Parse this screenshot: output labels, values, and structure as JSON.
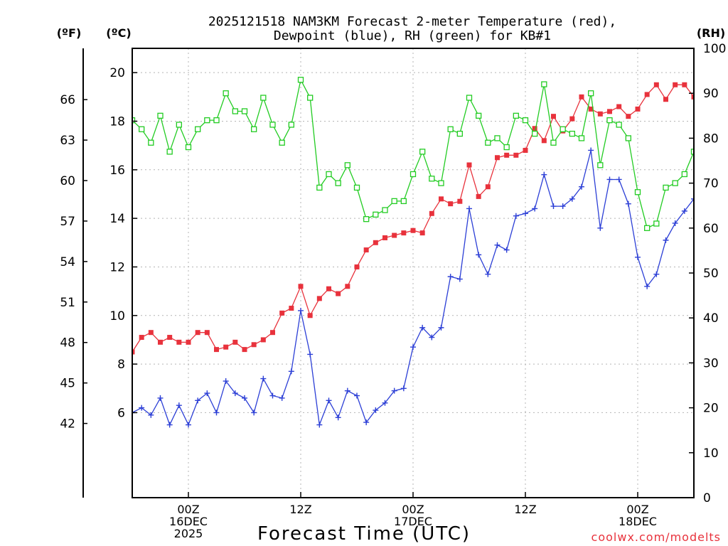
{
  "chart_data": {
    "type": "line",
    "title_line1": "2025121518 NAM3KM Forecast 2-meter Temperature (red),",
    "title_line2": "Dewpoint (blue), RH (green) for KB#1",
    "unit_f": "(ºF)",
    "unit_c": "(ºC)",
    "unit_rh": "(RH)",
    "xlabel": "Forecast Time (UTC)",
    "watermark": "coolwx.com/modelts",
    "x_hours": [
      0,
      1,
      2,
      3,
      4,
      5,
      6,
      7,
      8,
      9,
      10,
      11,
      12,
      13,
      14,
      15,
      16,
      17,
      18,
      19,
      20,
      21,
      22,
      23,
      24,
      25,
      26,
      27,
      28,
      29,
      30,
      31,
      32,
      33,
      34,
      35,
      36,
      37,
      38,
      39,
      40,
      41,
      42,
      43,
      44,
      45,
      46,
      47,
      48,
      49,
      50,
      51,
      52,
      53,
      54,
      55,
      56,
      57,
      58,
      59,
      60
    ],
    "xlim": [
      0,
      60
    ],
    "x_ticks": [
      {
        "h": 6,
        "lines": [
          "00Z",
          "16DEC",
          "2025"
        ]
      },
      {
        "h": 18,
        "lines": [
          "12Z"
        ]
      },
      {
        "h": 30,
        "lines": [
          "00Z",
          "17DEC"
        ]
      },
      {
        "h": 42,
        "lines": [
          "12Z"
        ]
      },
      {
        "h": 54,
        "lines": [
          "00Z",
          "18DEC"
        ]
      }
    ],
    "ylim_c": [
      2.5,
      21
    ],
    "y_ticks_c": [
      6,
      8,
      10,
      12,
      14,
      16,
      18,
      20
    ],
    "y_ticks_f": [
      42,
      45,
      48,
      51,
      54,
      57,
      60,
      63,
      66
    ],
    "ylim_rh": [
      0,
      100
    ],
    "y_ticks_rh": [
      0,
      10,
      20,
      30,
      40,
      50,
      60,
      70,
      80,
      90,
      100
    ],
    "grid": true,
    "series": [
      {
        "name": "Temperature",
        "axis": "c",
        "color": "#e8323c",
        "marker": "filled-square",
        "values": [
          8.5,
          9.1,
          9.3,
          8.9,
          9.1,
          8.9,
          8.9,
          9.3,
          9.3,
          8.6,
          8.7,
          8.9,
          8.6,
          8.8,
          9.0,
          9.3,
          10.1,
          10.3,
          11.2,
          10.0,
          10.7,
          11.1,
          10.9,
          11.2,
          12.0,
          12.7,
          13.0,
          13.2,
          13.3,
          13.4,
          13.5,
          13.4,
          14.2,
          14.8,
          14.6,
          14.7,
          16.2,
          14.9,
          15.3,
          16.5,
          16.6,
          16.6,
          16.8,
          17.7,
          17.2,
          18.2,
          17.6,
          18.1,
          19.0,
          18.5,
          18.3,
          18.4,
          18.6,
          18.2,
          18.5,
          19.1,
          19.5,
          18.9,
          19.5,
          19.5,
          19.0
        ]
      },
      {
        "name": "Dewpoint",
        "axis": "c",
        "color": "#2c3fd6",
        "marker": "plus",
        "values": [
          6.0,
          6.2,
          5.9,
          6.6,
          5.5,
          6.3,
          5.5,
          6.5,
          6.8,
          6.0,
          7.3,
          6.8,
          6.6,
          6.0,
          7.4,
          6.7,
          6.6,
          7.7,
          10.2,
          8.4,
          5.5,
          6.5,
          5.8,
          6.9,
          6.7,
          5.6,
          6.1,
          6.4,
          6.9,
          7.0,
          8.7,
          9.5,
          9.1,
          9.5,
          11.6,
          11.5,
          14.4,
          12.5,
          11.7,
          12.9,
          12.7,
          14.1,
          14.2,
          14.4,
          15.8,
          14.5,
          14.5,
          14.8,
          15.3,
          16.8,
          13.6,
          15.6,
          15.6,
          14.6,
          12.4,
          11.2,
          11.7,
          13.1,
          13.8,
          14.3,
          14.8
        ]
      },
      {
        "name": "RH",
        "axis": "rh",
        "color": "#22cc22",
        "marker": "open-square",
        "values": [
          84,
          82,
          79,
          85,
          77,
          83,
          78,
          82,
          84,
          84,
          90,
          86,
          86,
          82,
          89,
          83,
          79,
          83,
          93,
          89,
          69,
          72,
          70,
          74,
          69,
          62,
          63,
          64,
          66,
          66,
          72,
          77,
          71,
          70,
          82,
          81,
          89,
          85,
          79,
          80,
          78,
          85,
          84,
          81,
          92,
          79,
          82,
          81,
          80,
          90,
          74,
          84,
          83,
          80,
          68,
          60,
          61,
          69,
          70,
          72,
          77
        ]
      }
    ]
  }
}
